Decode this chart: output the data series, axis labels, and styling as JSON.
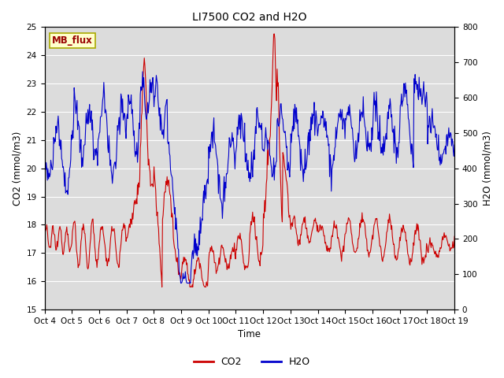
{
  "title": "LI7500 CO2 and H2O",
  "ylabel_left": "CO2 (mmol/m3)",
  "ylabel_right": "H2O (mmol/m3)",
  "xlabel": "Time",
  "ylim_left": [
    15.0,
    25.0
  ],
  "ylim_right": [
    0,
    800
  ],
  "yticks_left": [
    15.0,
    16.0,
    17.0,
    18.0,
    19.0,
    20.0,
    21.0,
    22.0,
    23.0,
    24.0,
    25.0
  ],
  "yticks_right": [
    0,
    100,
    200,
    300,
    400,
    500,
    600,
    700,
    800
  ],
  "xtick_labels": [
    "Oct 4",
    "Oct 5",
    "Oct 6",
    "Oct 7",
    "Oct 8",
    "Oct 9",
    "Oct 10",
    "Oct 11",
    "Oct 12",
    "Oct 13",
    "Oct 14",
    "Oct 15",
    "Oct 16",
    "Oct 17",
    "Oct 18",
    "Oct 19"
  ],
  "color_co2": "#cc0000",
  "color_h2o": "#0000cc",
  "bg_color": "#dcdcdc",
  "label_box_text": "MB_flux",
  "label_box_bg": "#ffffcc",
  "label_box_fg": "#990000",
  "legend_co2": "CO2",
  "legend_h2o": "H2O"
}
